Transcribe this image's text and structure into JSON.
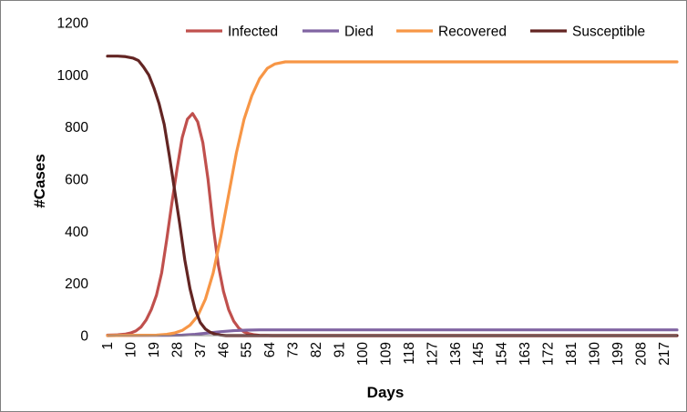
{
  "chart_data": {
    "type": "line",
    "xlabel": "Days",
    "ylabel": "#Cases",
    "ylim": [
      0,
      1200
    ],
    "yticks": [
      0,
      200,
      400,
      600,
      800,
      1000,
      1200
    ],
    "xlim": [
      1,
      222
    ],
    "x_tick_labels": [
      "1",
      "10",
      "19",
      "28",
      "37",
      "46",
      "55",
      "64",
      "73",
      "82",
      "91",
      "100",
      "109",
      "118",
      "127",
      "136",
      "145",
      "154",
      "163",
      "172",
      "181",
      "190",
      "199",
      "208",
      "217"
    ],
    "grid": false,
    "legend_position": "top",
    "series": [
      {
        "name": "Infected",
        "color": "#C0504D",
        "points": [
          [
            1,
            2
          ],
          [
            5,
            3
          ],
          [
            8,
            6
          ],
          [
            10,
            10
          ],
          [
            12,
            18
          ],
          [
            14,
            33
          ],
          [
            16,
            60
          ],
          [
            18,
            100
          ],
          [
            20,
            155
          ],
          [
            22,
            240
          ],
          [
            24,
            370
          ],
          [
            26,
            510
          ],
          [
            28,
            640
          ],
          [
            30,
            760
          ],
          [
            32,
            830
          ],
          [
            34,
            852
          ],
          [
            36,
            820
          ],
          [
            38,
            740
          ],
          [
            40,
            600
          ],
          [
            42,
            420
          ],
          [
            44,
            270
          ],
          [
            46,
            170
          ],
          [
            48,
            100
          ],
          [
            50,
            55
          ],
          [
            52,
            28
          ],
          [
            54,
            14
          ],
          [
            56,
            7
          ],
          [
            58,
            3
          ],
          [
            60,
            1
          ],
          [
            65,
            0
          ],
          [
            222,
            0
          ]
        ]
      },
      {
        "name": "Died",
        "color": "#8064A2",
        "points": [
          [
            1,
            0
          ],
          [
            25,
            1
          ],
          [
            30,
            2
          ],
          [
            35,
            5
          ],
          [
            40,
            10
          ],
          [
            45,
            15
          ],
          [
            50,
            19
          ],
          [
            55,
            21
          ],
          [
            60,
            22
          ],
          [
            222,
            22
          ]
        ]
      },
      {
        "name": "Recovered",
        "color": "#F79646",
        "points": [
          [
            1,
            0
          ],
          [
            20,
            2
          ],
          [
            24,
            5
          ],
          [
            27,
            10
          ],
          [
            30,
            20
          ],
          [
            33,
            40
          ],
          [
            36,
            75
          ],
          [
            39,
            140
          ],
          [
            42,
            240
          ],
          [
            45,
            380
          ],
          [
            48,
            540
          ],
          [
            51,
            700
          ],
          [
            54,
            830
          ],
          [
            57,
            920
          ],
          [
            60,
            985
          ],
          [
            63,
            1025
          ],
          [
            66,
            1042
          ],
          [
            70,
            1050
          ],
          [
            222,
            1050
          ]
        ]
      },
      {
        "name": "Susceptible",
        "color": "#632523",
        "points": [
          [
            1,
            1072
          ],
          [
            5,
            1072
          ],
          [
            8,
            1070
          ],
          [
            11,
            1064
          ],
          [
            13,
            1055
          ],
          [
            15,
            1030
          ],
          [
            17,
            1000
          ],
          [
            19,
            950
          ],
          [
            21,
            890
          ],
          [
            23,
            810
          ],
          [
            25,
            690
          ],
          [
            27,
            560
          ],
          [
            29,
            430
          ],
          [
            31,
            290
          ],
          [
            33,
            180
          ],
          [
            35,
            100
          ],
          [
            37,
            50
          ],
          [
            39,
            25
          ],
          [
            41,
            12
          ],
          [
            43,
            5
          ],
          [
            45,
            2
          ],
          [
            47,
            0
          ],
          [
            222,
            0
          ]
        ]
      }
    ]
  }
}
